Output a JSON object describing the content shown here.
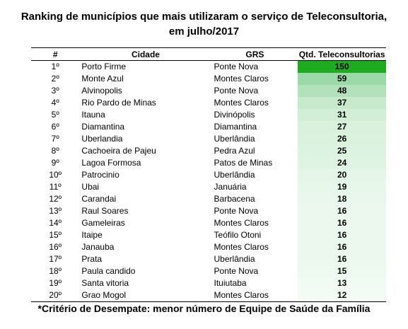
{
  "title": {
    "line1": "Ranking de municípios que mais utilizaram o serviço de Teleconsultoria,",
    "line2": "em julho/2017"
  },
  "headers": [
    "#",
    "Cidade",
    "GRS",
    "Qtd. Teleconsultorias"
  ],
  "rows": [
    {
      "rank": "1º",
      "city": "Porto Firme",
      "grs": "Ponte Nova",
      "qtd": "150",
      "color": "#1fab1f"
    },
    {
      "rank": "2º",
      "city": "Monte Azul",
      "grs": "Montes Claros",
      "qtd": "59",
      "color": "#9bd9a8"
    },
    {
      "rank": "3º",
      "city": "Alvinopolis",
      "grs": "Ponte Nova",
      "qtd": "48",
      "color": "#b2e2bb"
    },
    {
      "rank": "4º",
      "city": "Rio Pardo de Minas",
      "grs": "Montes Claros",
      "qtd": "37",
      "color": "#c7eacd"
    },
    {
      "rank": "5º",
      "city": "Itauna",
      "grs": "Divinópolis",
      "qtd": "31",
      "color": "#d2eed6"
    },
    {
      "rank": "6º",
      "city": "Diamantina",
      "grs": "Diamantina",
      "qtd": "27",
      "color": "#d9f1dd"
    },
    {
      "rank": "7º",
      "city": "Uberlandia",
      "grs": "Uberlândia",
      "qtd": "26",
      "color": "#dbf2df"
    },
    {
      "rank": "8º",
      "city": "Cachoeira de Pajeu",
      "grs": "Pedra Azul",
      "qtd": "25",
      "color": "#ddf3e1"
    },
    {
      "rank": "9º",
      "city": "Lagoa Formosa",
      "grs": "Patos de Minas",
      "qtd": "24",
      "color": "#dff4e3"
    },
    {
      "rank": "10º",
      "city": "Patrocinio",
      "grs": "Uberlândia",
      "qtd": "20",
      "color": "#e5f6e8"
    },
    {
      "rank": "11º",
      "city": "Ubai",
      "grs": "Januária",
      "qtd": "19",
      "color": "#e7f7ea"
    },
    {
      "rank": "12º",
      "city": "Carandai",
      "grs": "Barbacena",
      "qtd": "18",
      "color": "#e9f7ec"
    },
    {
      "rank": "13º",
      "city": "Raul Soares",
      "grs": "Ponte Nova",
      "qtd": "16",
      "color": "#ecf8ee"
    },
    {
      "rank": "14º",
      "city": "Gameleiras",
      "grs": "Montes Claros",
      "qtd": "16",
      "color": "#ecf8ee"
    },
    {
      "rank": "15º",
      "city": "Itaipe",
      "grs": "Teófilo Otoni",
      "qtd": "16",
      "color": "#ecf8ee"
    },
    {
      "rank": "16º",
      "city": "Janauba",
      "grs": "Montes Claros",
      "qtd": "16",
      "color": "#ecf8ee"
    },
    {
      "rank": "17º",
      "city": "Prata",
      "grs": "Uberlândia",
      "qtd": "16",
      "color": "#ecf8ee"
    },
    {
      "rank": "18º",
      "city": "Paula candido",
      "grs": "Ponte Nova",
      "qtd": "15",
      "color": "#eef9f0"
    },
    {
      "rank": "19º",
      "city": "Santa vitoria",
      "grs": "Ituiutaba",
      "qtd": "13",
      "color": "#f1faf3"
    },
    {
      "rank": "20º",
      "city": "Grao Mogol",
      "grs": "Montes Claros",
      "qtd": "12",
      "color": "#f3fbf4"
    }
  ],
  "footnote": "*Critério de Desempate: menor número de Equipe de Saúde da Família"
}
